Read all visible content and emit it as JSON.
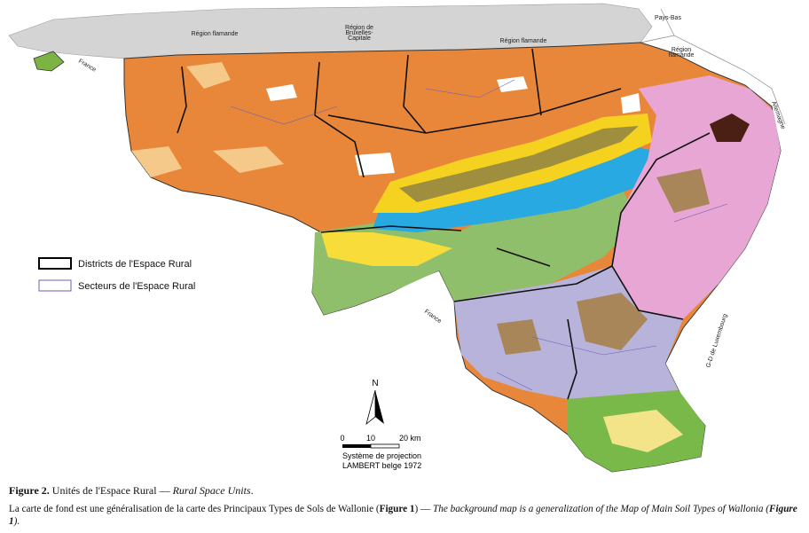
{
  "map": {
    "labels": {
      "flanders_west": "Région flamande",
      "flanders_center": "Région flamande",
      "brussels": [
        "Région de",
        "Bruxelles-",
        "Capitale"
      ],
      "flanders_east": [
        "Région",
        "flamande"
      ],
      "netherlands": "Pays-Bas",
      "germany": "Allemagne",
      "france_north": "France",
      "france_south": "France",
      "luxembourg": "G-D de Luxembourg"
    },
    "legend": {
      "districts": "Districts de l'Espace Rural",
      "sectors": "Secteurs de l'Espace Rural"
    },
    "north_arrow": "N",
    "scale_bar": [
      "0",
      "10",
      "20 km"
    ],
    "projection": [
      "Système de projection",
      "LAMBERT belge 1972"
    ]
  },
  "caption": {
    "figure": "Figure 2.",
    "title_fr": "Unités de l'Espace Rural — ",
    "title_en": "Rural Space Units",
    "title_end": ".",
    "note": [
      "La carte de fond est une généralisation de la carte des Principaux Types de Sols de Wallonie (",
      "Figure 1",
      ") — ",
      "The background map is a generalization of the Map of Main Soil Types of Wallonia (",
      "Figure 1",
      ")."
    ]
  }
}
